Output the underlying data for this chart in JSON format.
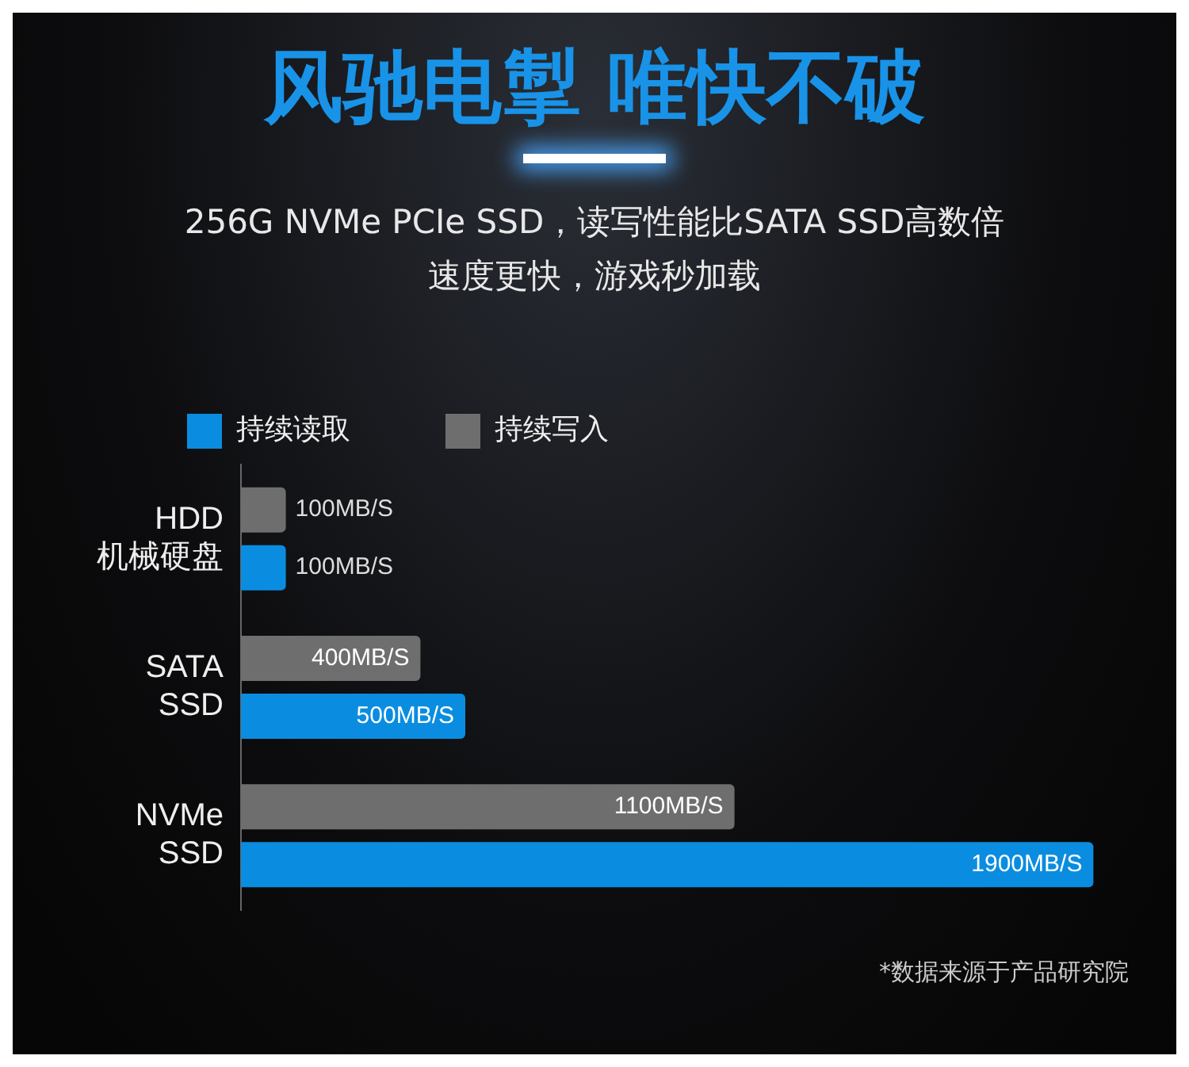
{
  "chart_data": {
    "type": "bar",
    "orientation": "horizontal",
    "title": "风驰电掣 唯快不破",
    "subtitle": "256G NVMe PCIe SSD，读写性能比SATA SSD高数倍速度更快，游戏秒加载",
    "categories": [
      "HDD\n机械硬盘",
      "SATA\nSSD",
      "NVMe\nSSD"
    ],
    "series": [
      {
        "name": "持续写入",
        "color": "#6e6e6e",
        "values": [
          100,
          400,
          1100
        ],
        "value_labels": [
          "100MB/S",
          "400MB/S",
          "1100MB/S"
        ]
      },
      {
        "name": "持续读取",
        "color": "#0a8de0",
        "values": [
          100,
          500,
          1900
        ],
        "value_labels": [
          "100MB/S",
          "500MB/S",
          "1900MB/S"
        ]
      }
    ],
    "legend": "top left",
    "annotations": [
      "*数据来源于产品研究院"
    ]
  }
}
